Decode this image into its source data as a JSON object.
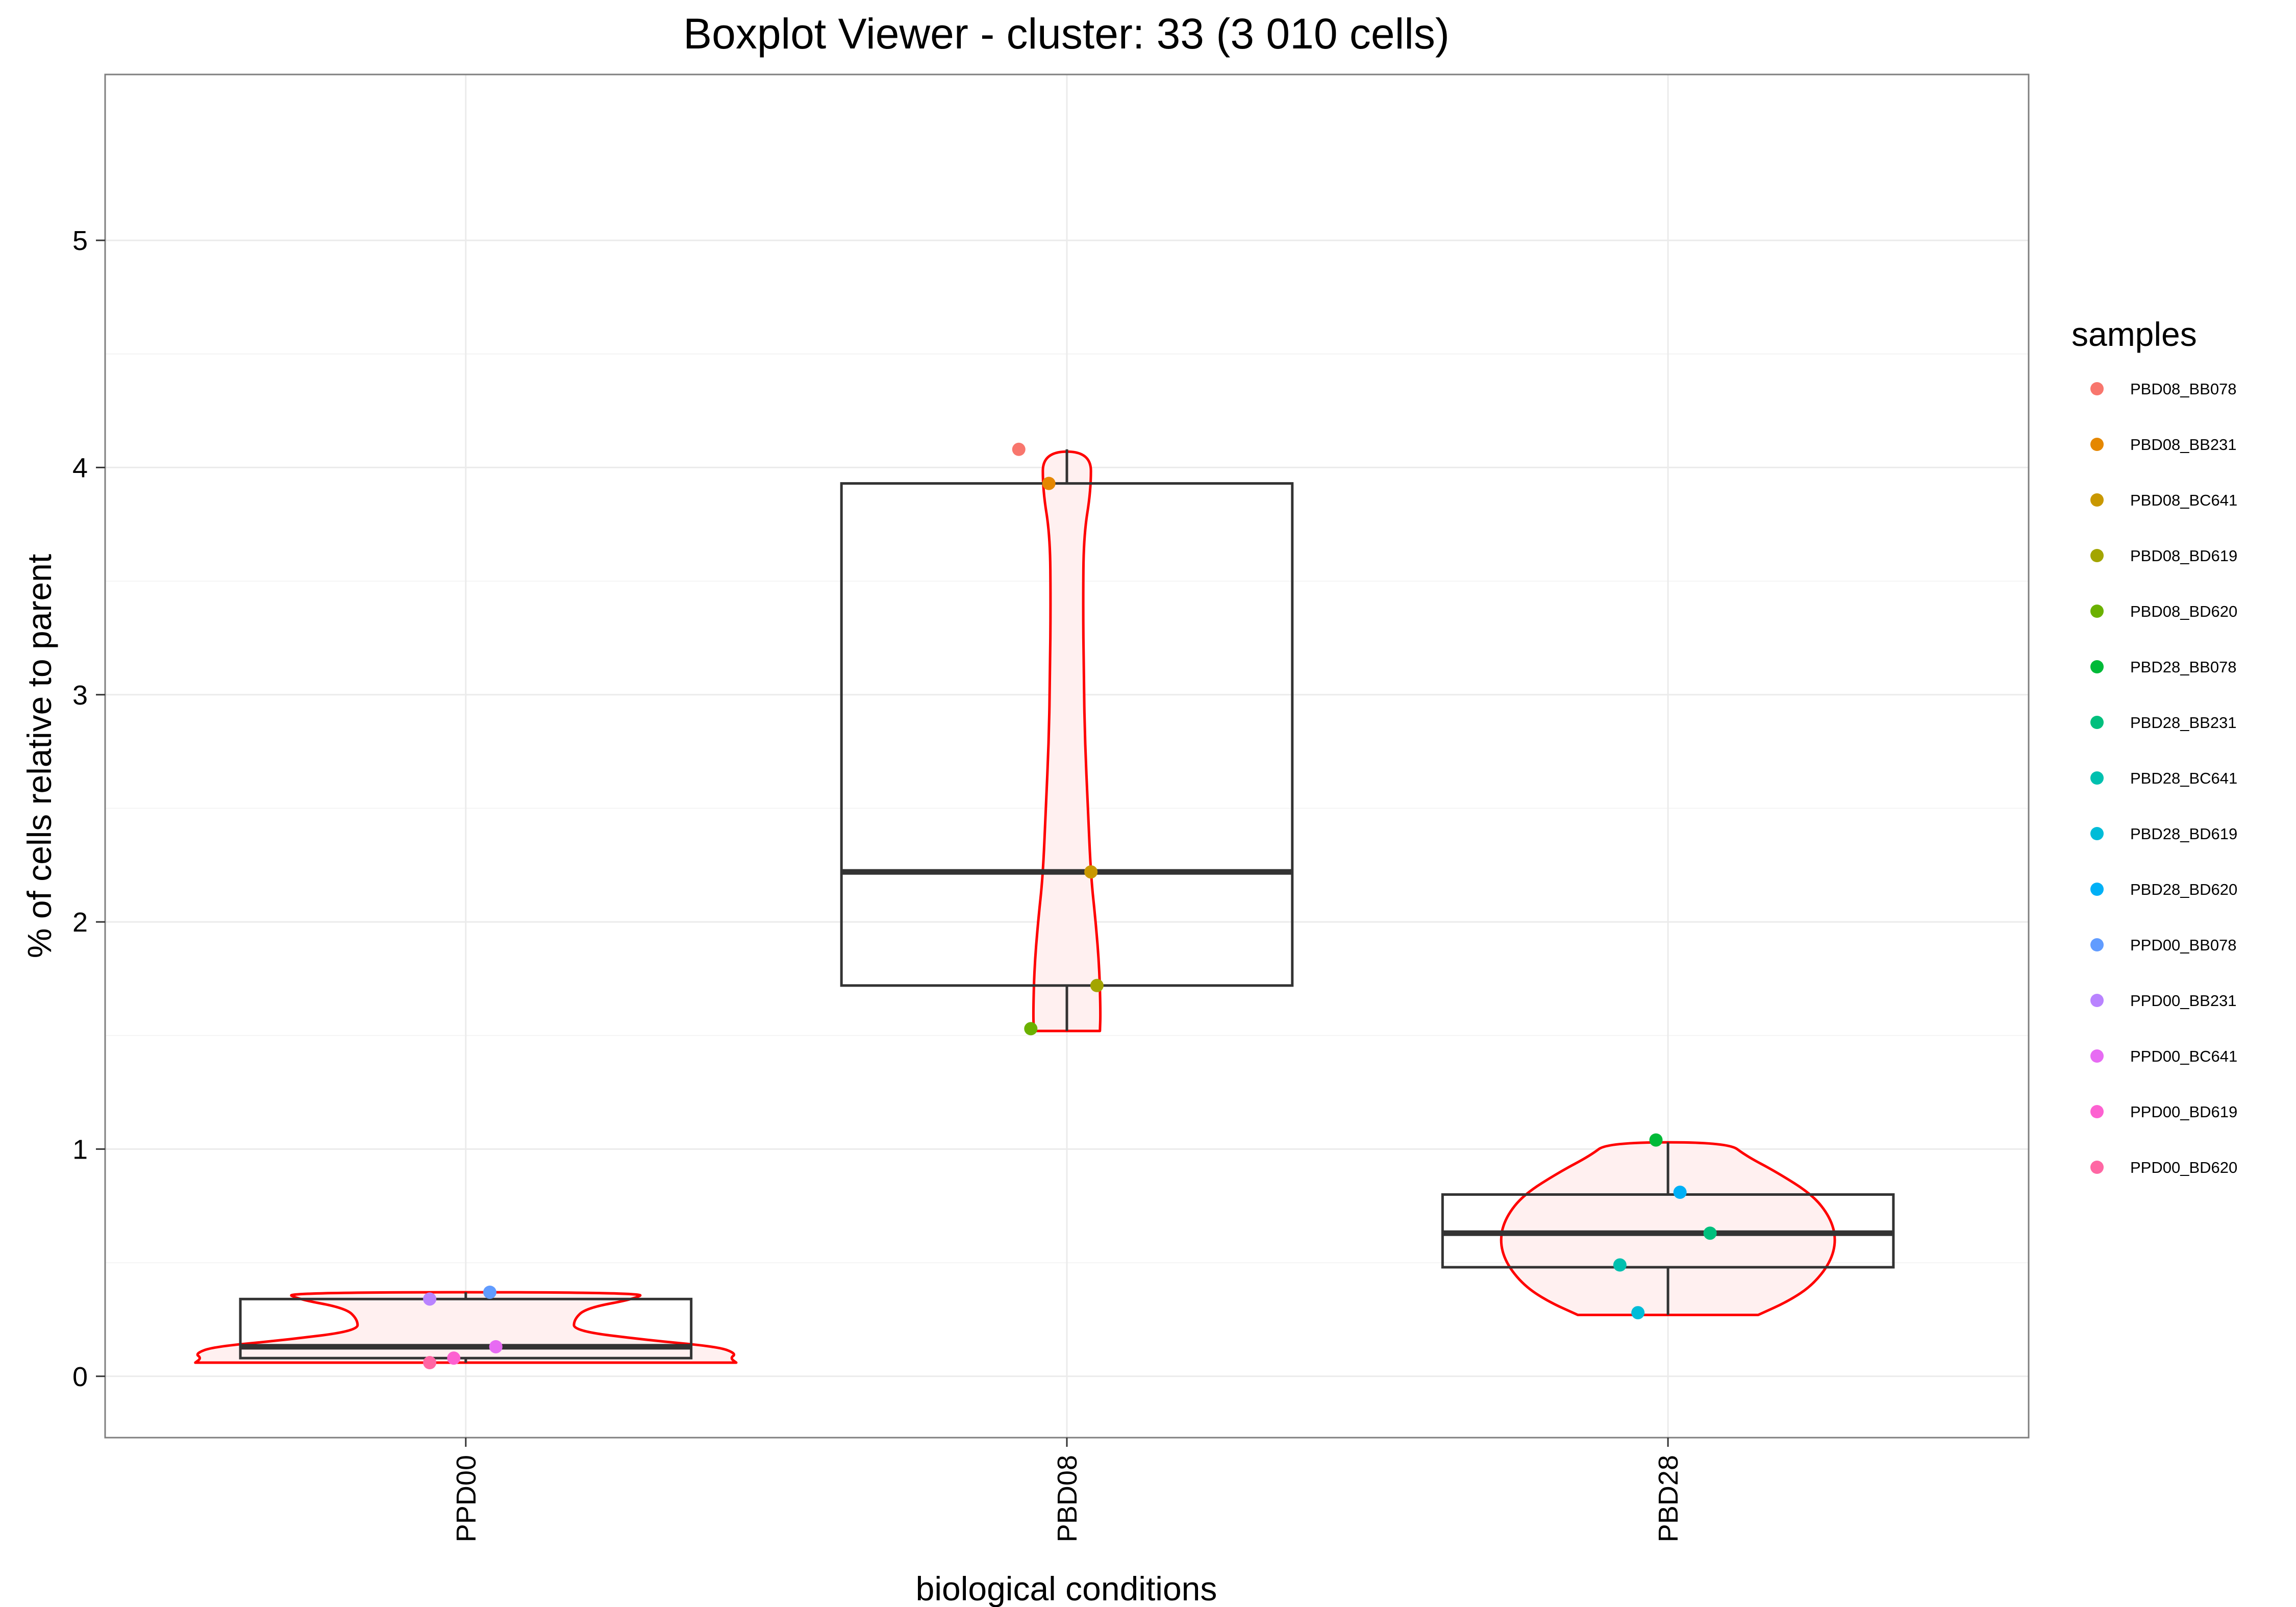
{
  "chart_data": {
    "type": "boxplot",
    "title": "Boxplot Viewer - cluster: 33 (3 010 cells)",
    "xlabel": "biological conditions",
    "ylabel": "% of cells relative to parent",
    "ylim": [
      -0.27,
      5.73
    ],
    "yticks": [
      0,
      1,
      2,
      3,
      4,
      5
    ],
    "grid": true,
    "legend_position": "right",
    "legend_title": "samples",
    "categories": [
      "PPD00",
      "PBD08",
      "PBD28"
    ],
    "boxes": [
      {
        "category": "PPD00",
        "min": 0.06,
        "q1": 0.08,
        "median": 0.13,
        "q3": 0.34,
        "max": 0.37
      },
      {
        "category": "PBD08",
        "min": 1.52,
        "q1": 1.72,
        "median": 2.22,
        "q3": 3.93,
        "max": 4.08
      },
      {
        "category": "PBD28",
        "min": 0.27,
        "q1": 0.48,
        "median": 0.63,
        "q3": 0.8,
        "max": 1.03
      }
    ],
    "violins": [
      {
        "category": "PPD00",
        "y": [
          0.06,
          0.08,
          0.1,
          0.13,
          0.16,
          0.2,
          0.25,
          0.3,
          0.34,
          0.37
        ],
        "width": [
          0.45,
          0.44,
          0.45,
          0.42,
          0.3,
          0.18,
          0.18,
          0.2,
          0.28,
          0.3
        ]
      },
      {
        "category": "PBD08",
        "y": [
          1.52,
          1.6,
          1.8,
          2.0,
          2.2,
          2.5,
          2.8,
          3.1,
          3.4,
          3.7,
          3.9,
          4.07
        ],
        "width": [
          0.055,
          0.056,
          0.054,
          0.048,
          0.04,
          0.035,
          0.03,
          0.028,
          0.027,
          0.028,
          0.04,
          0.04
        ]
      },
      {
        "category": "PBD28",
        "y": [
          0.27,
          0.33,
          0.4,
          0.5,
          0.6,
          0.7,
          0.8,
          0.9,
          0.97,
          1.03
        ],
        "width": [
          0.15,
          0.2,
          0.24,
          0.27,
          0.28,
          0.27,
          0.24,
          0.18,
          0.13,
          0.1
        ]
      }
    ],
    "points": [
      {
        "sample": "PBD08_BB078",
        "category": "PBD08",
        "y": 4.08,
        "jitter": -0.08
      },
      {
        "sample": "PBD08_BB231",
        "category": "PBD08",
        "y": 3.93,
        "jitter": -0.03
      },
      {
        "sample": "PBD08_BC641",
        "category": "PBD08",
        "y": 2.22,
        "jitter": 0.04
      },
      {
        "sample": "PBD08_BD619",
        "category": "PBD08",
        "y": 1.72,
        "jitter": 0.05
      },
      {
        "sample": "PBD08_BD620",
        "category": "PBD08",
        "y": 1.53,
        "jitter": -0.06
      },
      {
        "sample": "PBD28_BB078",
        "category": "PBD28",
        "y": 1.04,
        "jitter": -0.02
      },
      {
        "sample": "PBD28_BB231",
        "category": "PBD28",
        "y": 0.63,
        "jitter": 0.07
      },
      {
        "sample": "PBD28_BC641",
        "category": "PBD28",
        "y": 0.49,
        "jitter": -0.08
      },
      {
        "sample": "PBD28_BD619",
        "category": "PBD28",
        "y": 0.28,
        "jitter": -0.05
      },
      {
        "sample": "PBD28_BD620",
        "category": "PBD28",
        "y": 0.81,
        "jitter": 0.02
      },
      {
        "sample": "PPD00_BB078",
        "category": "PPD00",
        "y": 0.37,
        "jitter": 0.04
      },
      {
        "sample": "PPD00_BB231",
        "category": "PPD00",
        "y": 0.34,
        "jitter": -0.06
      },
      {
        "sample": "PPD00_BC641",
        "category": "PPD00",
        "y": 0.13,
        "jitter": 0.05
      },
      {
        "sample": "PPD00_BD619",
        "category": "PPD00",
        "y": 0.08,
        "jitter": -0.02
      },
      {
        "sample": "PPD00_BD620",
        "category": "PPD00",
        "y": 0.06,
        "jitter": -0.06
      }
    ],
    "legend": [
      {
        "label": "PBD08_BB078",
        "color": "#F8766D"
      },
      {
        "label": "PBD08_BB231",
        "color": "#E58700"
      },
      {
        "label": "PBD08_BC641",
        "color": "#C99800"
      },
      {
        "label": "PBD08_BD619",
        "color": "#A3A500"
      },
      {
        "label": "PBD08_BD620",
        "color": "#6BB100"
      },
      {
        "label": "PBD28_BB078",
        "color": "#00BA38"
      },
      {
        "label": "PBD28_BB231",
        "color": "#00BF7D"
      },
      {
        "label": "PBD28_BC641",
        "color": "#00C0AF"
      },
      {
        "label": "PBD28_BD619",
        "color": "#00BCD8"
      },
      {
        "label": "PBD28_BD620",
        "color": "#00B0F6"
      },
      {
        "label": "PPD00_BB078",
        "color": "#619CFF"
      },
      {
        "label": "PPD00_BB231",
        "color": "#B983FF"
      },
      {
        "label": "PPD00_BC641",
        "color": "#E76BF3"
      },
      {
        "label": "PPD00_BD619",
        "color": "#FD61D1"
      },
      {
        "label": "PPD00_BD620",
        "color": "#FF67A4"
      }
    ],
    "colors": {
      "violin_stroke": "#FF0000",
      "violin_fill": "#FFF0F0",
      "box_stroke": "#333333",
      "grid": "#EBEBEB",
      "panel_border": "#7F7F7F"
    }
  }
}
